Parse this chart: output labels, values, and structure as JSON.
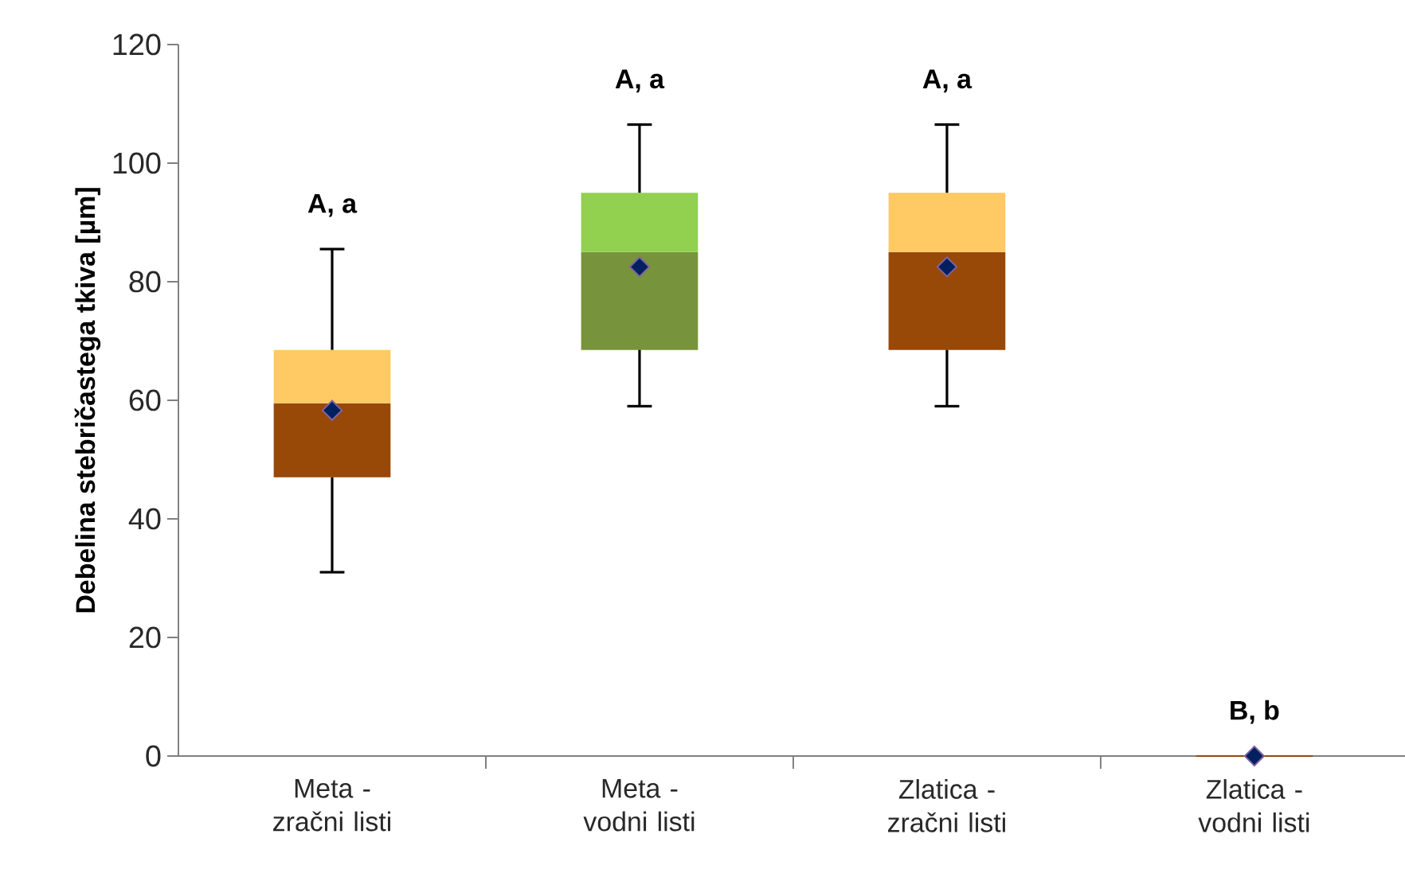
{
  "chart_data": {
    "type": "box",
    "ylabel": "Debelina stebričastega tkiva [µm]",
    "categories": [
      "Meta - zračni listi",
      "Meta - vodni listi",
      "Zlatica - zračni listi",
      "Zlatica - vodni listi"
    ],
    "boxes": [
      {
        "low": 31,
        "q1": 47,
        "median": 59.5,
        "q3": 68.5,
        "high": 85.5,
        "mean": 58.3
      },
      {
        "low": 59,
        "q1": 68.5,
        "median": 85,
        "q3": 95,
        "high": 106.5,
        "mean": 82.5
      },
      {
        "low": 59,
        "q1": 68.5,
        "median": 85,
        "q3": 95,
        "high": 106.5,
        "mean": 82.5
      },
      {
        "low": 0,
        "q1": 0,
        "median": 0,
        "q3": 0,
        "high": 0,
        "mean": 0
      }
    ],
    "colors": [
      [
        "#984807",
        "#ffc963"
      ],
      [
        "#77933c",
        "#92d050"
      ],
      [
        "#984807",
        "#ffc963"
      ],
      [
        "#984807",
        "#ffc963"
      ]
    ],
    "marker": "diamond",
    "annotations": [
      "A, a",
      "A, a",
      "A, a",
      "B, b"
    ],
    "ylim": [
      0,
      120
    ],
    "yticks": [
      0,
      20,
      40,
      60,
      80,
      100,
      120
    ],
    "grid": false
  }
}
